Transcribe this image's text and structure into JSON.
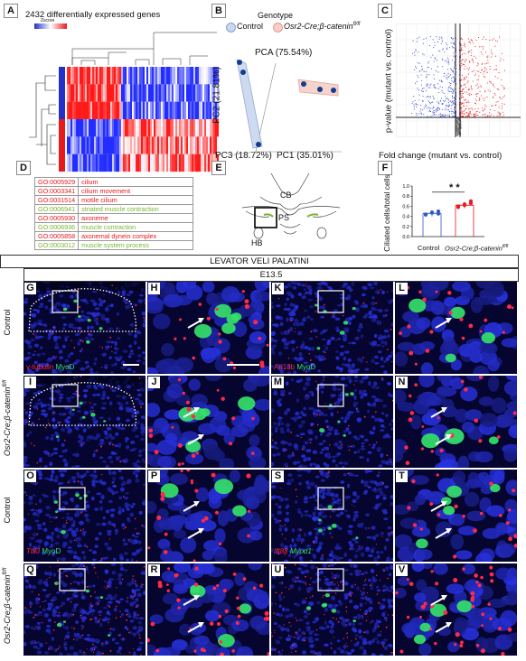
{
  "panel_labels": {
    "A": "A",
    "B": "B",
    "C": "C",
    "D": "D",
    "E": "E",
    "F": "F",
    "G": "G",
    "H": "H",
    "I": "I",
    "J": "J",
    "K": "K",
    "L": "L",
    "M": "M",
    "N": "N",
    "O": "O",
    "P": "P",
    "Q": "Q",
    "R": "R",
    "S": "S",
    "T": "T",
    "U": "U",
    "V": "V"
  },
  "panelA": {
    "title": "2432 differentially expressed genes",
    "scale_label": "Zscore"
  },
  "panelB": {
    "legend_title": "Genotype",
    "legend_control": "Control",
    "legend_mutant": "Osr2-Cre;β-catenin",
    "legend_mutant_sup": "fl/fl",
    "pca_label": "PCA (75.54%)",
    "pc2": "PC2 (21.81%)",
    "pc3": "PC3 (18.72%)",
    "pc1": "PC1 (35.01%)"
  },
  "panelC": {
    "ylabel": "p-value (mutant vs. control)",
    "xlabel": "Fold change (mutant vs. control)"
  },
  "panelD": {
    "go_terms": [
      {
        "id": "GO:0005929",
        "term": "cilium",
        "color": "#e8191d"
      },
      {
        "id": "GO:0003341",
        "term": "cilium movement",
        "color": "#e8191d"
      },
      {
        "id": "GO:0031514",
        "term": "motile cilium",
        "color": "#e8191d"
      },
      {
        "id": "GO:0006941",
        "term": "striated muscle contraction",
        "color": "#7ab534"
      },
      {
        "id": "GO:0005930",
        "term": "axoneme",
        "color": "#e8191d"
      },
      {
        "id": "GO:0006936",
        "term": "muscle contraction",
        "color": "#7ab534"
      },
      {
        "id": "GO:0005858",
        "term": "axonemal dynein complex",
        "color": "#e8191d"
      },
      {
        "id": "GO:0003012",
        "term": "muscle system process",
        "color": "#7ab534"
      }
    ]
  },
  "panelE": {
    "cb": "CB",
    "ps": "PS",
    "hb": "HB"
  },
  "panelF": {
    "ylabel": "Ciliated cells/total cells",
    "sig": "* *",
    "yticks": [
      "0.0",
      "0.2",
      "0.4",
      "0.6",
      "0.8",
      "1.0"
    ],
    "xcontrol": "Control",
    "xmutant": "Osr2-Cre;β-catenin",
    "xmutant_sup": "fl/fl",
    "chart_data": {
      "type": "bar",
      "categories": [
        "Control",
        "Osr2-Cre;β-catenin fl/fl"
      ],
      "values": [
        0.46,
        0.62
      ],
      "ylabel": "Ciliated cells/total cells",
      "ylim": [
        0,
        1.0
      ],
      "points": {
        "Control": [
          0.43,
          0.47,
          0.5,
          0.44,
          0.48,
          0.45
        ],
        "Osr2-Cre;β-catenin fl/fl": [
          0.58,
          0.62,
          0.66,
          0.6,
          0.64,
          0.7
        ]
      }
    }
  },
  "header": {
    "title": "LEVATOR VELI PALATINI",
    "stage": "E13.5"
  },
  "rows": {
    "control": "Control",
    "mutant": "Osr2-Cre;β-catenin",
    "mutant_sup": "fl/fl"
  },
  "stains": {
    "g_red": "γ-tubulin",
    "g_green": "MyoD",
    "k_red": "Arl13b",
    "k_green": "MyoD",
    "o_red": "Ttll3",
    "o_green": "MyoD",
    "s_red": "Ift88",
    "s_green": "Myod1"
  },
  "colors": {
    "blue": "#1a2aa8",
    "red": "#e8191d",
    "green": "#35e06a",
    "dark": "#05053a"
  }
}
